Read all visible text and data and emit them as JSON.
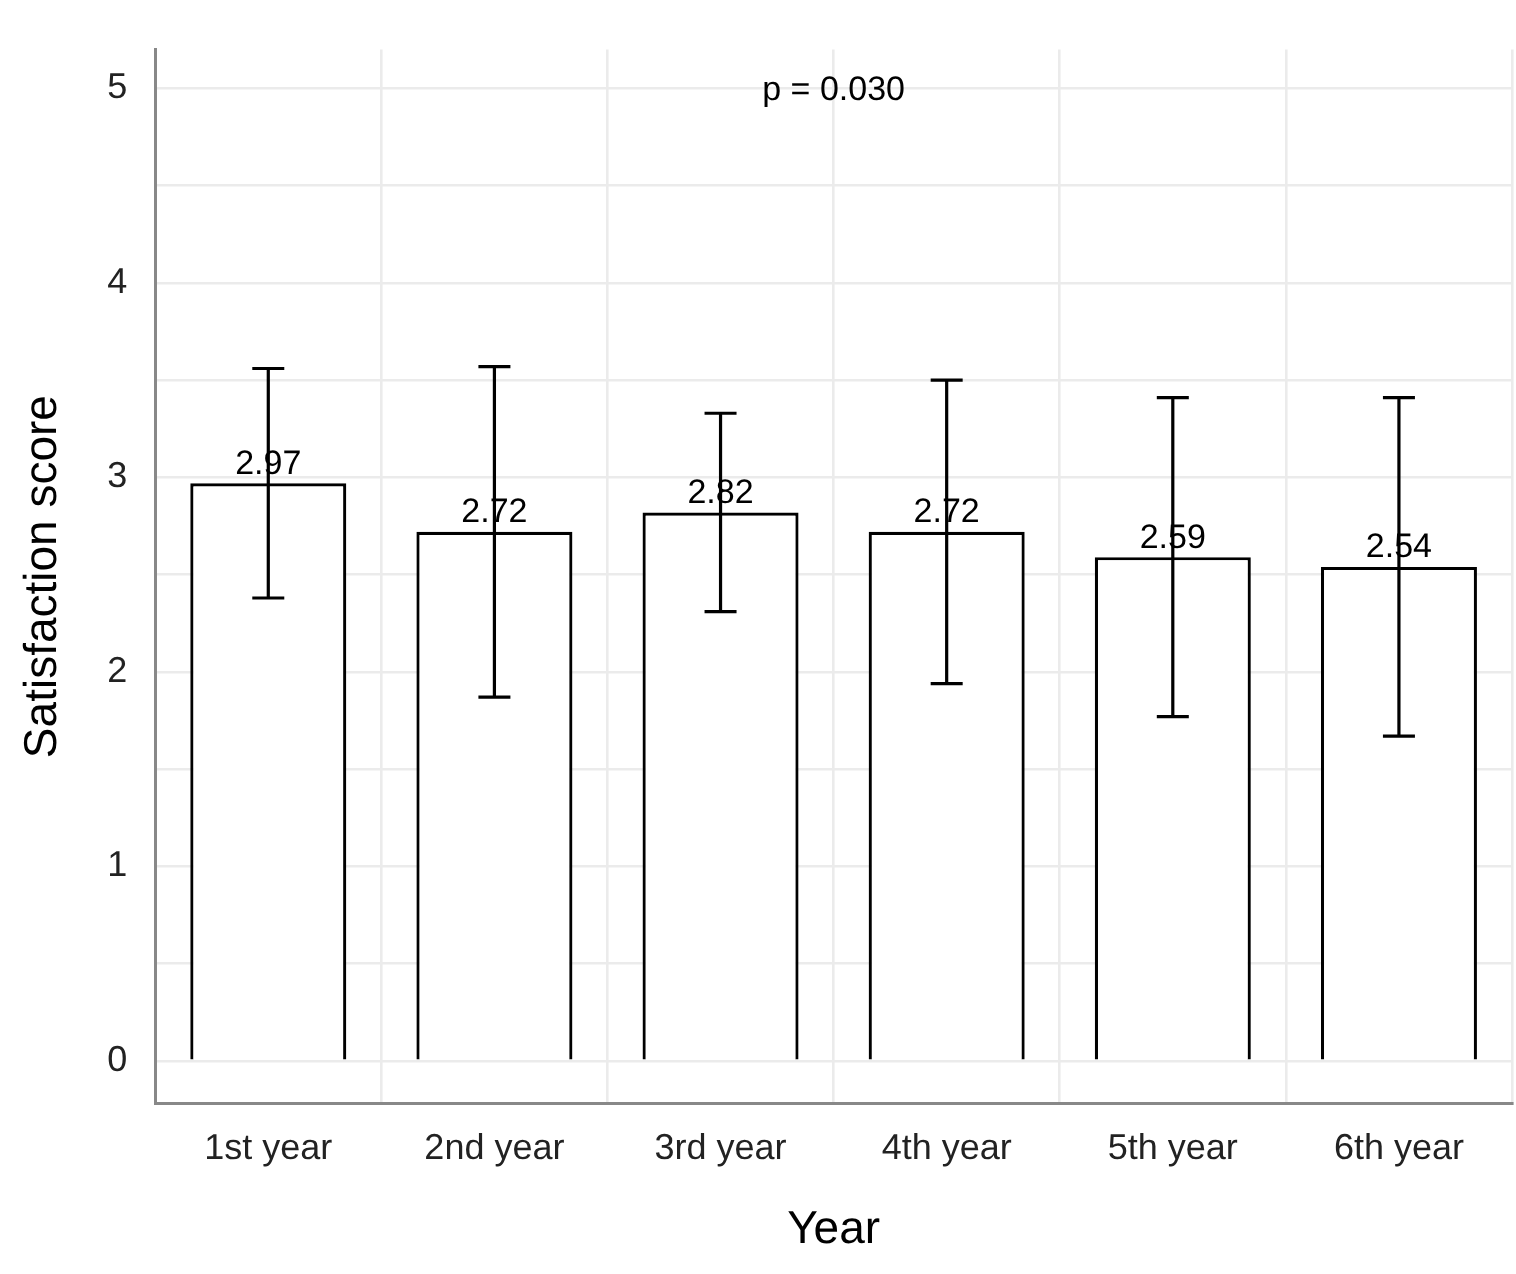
{
  "chart_data": {
    "type": "bar",
    "xlabel": "Year",
    "ylabel": "Satisfaction score",
    "categories": [
      "1st year",
      "2nd year",
      "3rd year",
      "4th year",
      "5th year",
      "6th year"
    ],
    "values": [
      2.97,
      2.72,
      2.82,
      2.72,
      2.59,
      2.54
    ],
    "errors": [
      0.59,
      0.85,
      0.51,
      0.78,
      0.82,
      0.87
    ],
    "color": "#ffffff",
    "data_labels": true,
    "ylim": [
      -0.22,
      5.2
    ],
    "yticks": [
      0,
      {
        "value": 0.5,
        "label": null
      },
      1,
      {
        "value": 1.5,
        "label": null
      },
      2,
      {
        "value": 2.5,
        "label": null
      },
      3,
      {
        "value": 3.5,
        "label": null
      },
      4,
      {
        "value": 4.5,
        "label": null
      },
      5
    ],
    "grid": true,
    "annotations": [
      "p = 0.030"
    ]
  }
}
